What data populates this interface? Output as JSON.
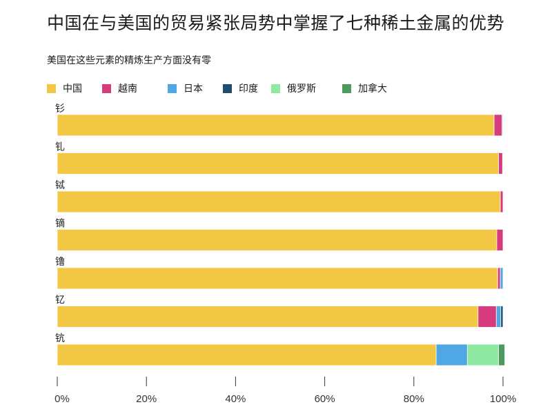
{
  "title": "中国在与美国的贸易紧张局势中掌握了七种稀土金属的优势",
  "subtitle": "美国在这些元素的精炼生产方面没有零",
  "colors": {
    "中国": "#f2c744",
    "越南": "#d63b7e",
    "日本": "#4fa8e3",
    "印度": "#1f4e6e",
    "俄罗斯": "#8ee9a3",
    "加拿大": "#4c9a5e"
  },
  "chart_data": {
    "type": "bar",
    "orientation": "horizontal",
    "stacked": true,
    "categories": [
      "钐",
      "钆",
      "铽",
      "镝",
      "镥",
      "钇",
      "钪"
    ],
    "series": [
      {
        "name": "中国",
        "values": [
          98.0,
          99.0,
          99.4,
          98.6,
          98.8,
          94.4,
          85.0
        ]
      },
      {
        "name": "越南",
        "values": [
          1.8,
          0.9,
          0.6,
          1.4,
          0.6,
          4.1,
          0
        ]
      },
      {
        "name": "日本",
        "values": [
          0,
          0,
          0,
          0,
          0.6,
          1.0,
          7.0
        ]
      },
      {
        "name": "印度",
        "values": [
          0,
          0,
          0,
          0,
          0,
          0.5,
          0
        ]
      },
      {
        "name": "俄罗斯",
        "values": [
          0.2,
          0.1,
          0,
          0,
          0,
          0,
          7.0
        ]
      },
      {
        "name": "加拿大",
        "values": [
          0,
          0,
          0,
          0,
          0,
          0,
          1.4
        ]
      }
    ],
    "xlim": [
      0,
      100
    ],
    "xticks": [
      "0%",
      "20%",
      "40%",
      "60%",
      "80%",
      "100%"
    ],
    "legend_position": "top-left",
    "grid": false
  }
}
